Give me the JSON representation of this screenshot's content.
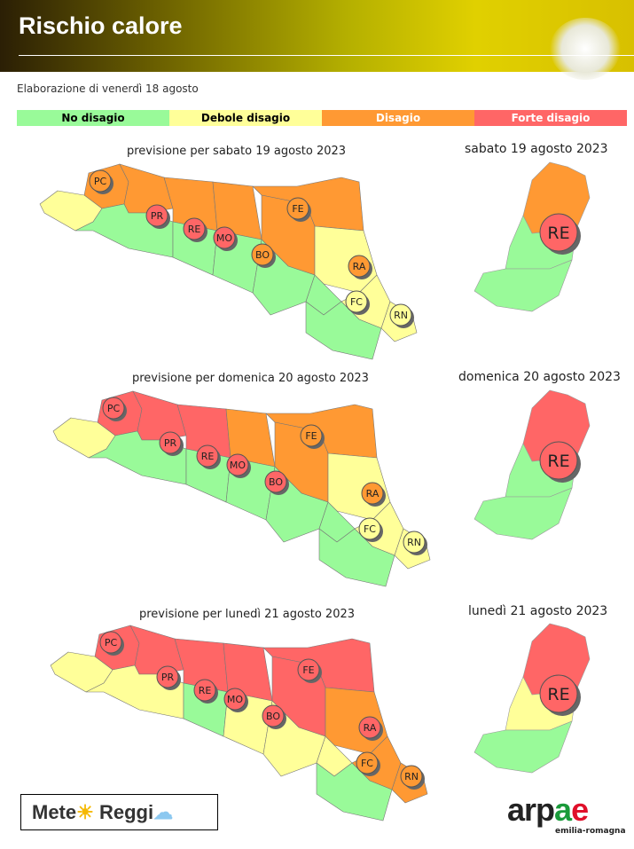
{
  "header": {
    "title": "Rischio calore"
  },
  "elaborazione": "Elaborazione di venerdì 18 agosto",
  "legend": [
    {
      "label": "No disagio",
      "color": "#99fa99",
      "text": "#000"
    },
    {
      "label": "Debole disagio",
      "color": "#ffff99",
      "text": "#000"
    },
    {
      "label": "Disagio",
      "color": "#ff9933",
      "text": "#fff"
    },
    {
      "label": "Forte disagio",
      "color": "#ff6666",
      "text": "#fff"
    }
  ],
  "colors": {
    "G": "#99fa99",
    "Y": "#ffff99",
    "O": "#ff9933",
    "R": "#ff6666"
  },
  "days": [
    {
      "caption": "previsione per sabato 19 agosto 2023",
      "re_caption": "sabato 19 agosto 2023",
      "zones": {
        "pc_plain": "O",
        "pc_hill": "Y",
        "pr_plain": "O",
        "pr_hill": "G",
        "re_plain": "O",
        "re_hill": "G",
        "mo_plain": "O",
        "mo_hill": "G",
        "fe": "O",
        "bo_plain": "O",
        "bo_hill": "G",
        "ra_plain": "Y",
        "ra_hill": "G",
        "fc_plain": "Y",
        "fc_hill": "G",
        "rn": "Y"
      },
      "provinces": {
        "PC": "O",
        "PR": "R",
        "RE": "R",
        "MO": "R",
        "FE": "O",
        "BO": "O",
        "RA": "O",
        "FC": "Y",
        "RN": "Y"
      },
      "re_map": {
        "top": "O",
        "mid": "G",
        "bottom": "G",
        "circle": "R"
      }
    },
    {
      "caption": "previsione per domenica 20 agosto 2023",
      "re_caption": "domenica 20 agosto 2023",
      "zones": {
        "pc_plain": "R",
        "pc_hill": "Y",
        "pr_plain": "R",
        "pr_hill": "G",
        "re_plain": "R",
        "re_hill": "G",
        "mo_plain": "O",
        "mo_hill": "G",
        "fe": "O",
        "bo_plain": "O",
        "bo_hill": "G",
        "ra_plain": "Y",
        "ra_hill": "G",
        "fc_plain": "Y",
        "fc_hill": "G",
        "rn": "Y"
      },
      "provinces": {
        "PC": "R",
        "PR": "R",
        "RE": "R",
        "MO": "R",
        "FE": "O",
        "BO": "R",
        "RA": "O",
        "FC": "Y",
        "RN": "Y"
      },
      "re_map": {
        "top": "R",
        "mid": "G",
        "bottom": "G",
        "circle": "R"
      }
    },
    {
      "caption": "previsione per lunedì 21 agosto 2023",
      "re_caption": "lunedì 21 agosto 2023",
      "zones": {
        "pc_plain": "R",
        "pc_hill": "Y",
        "pr_plain": "R",
        "pr_hill": "Y",
        "re_plain": "R",
        "re_hill": "G",
        "mo_plain": "R",
        "mo_hill": "Y",
        "fe": "R",
        "bo_plain": "R",
        "bo_hill": "Y",
        "ra_plain": "O",
        "ra_hill": "Y",
        "fc_plain": "O",
        "fc_hill": "G",
        "rn": "O"
      },
      "provinces": {
        "PC": "R",
        "PR": "R",
        "RE": "R",
        "MO": "R",
        "FE": "R",
        "BO": "R",
        "RA": "R",
        "FC": "O",
        "RN": "O"
      },
      "re_map": {
        "top": "R",
        "mid": "Y",
        "bottom": "G",
        "circle": "R"
      }
    }
  ],
  "logos": {
    "meteo_left": "Mete",
    "meteo_right": "Reggi",
    "arpae": "arpae",
    "arpae_sub": "emilia-romagna"
  }
}
